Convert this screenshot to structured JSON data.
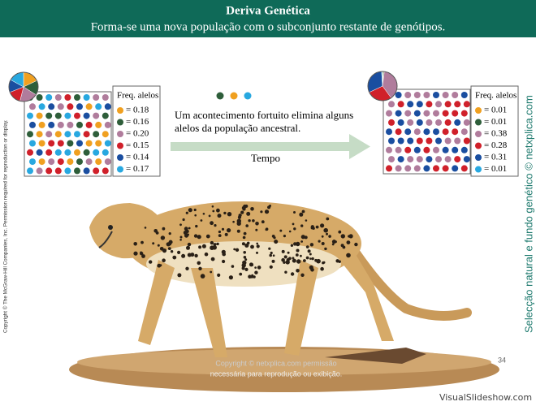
{
  "header": {
    "title": "Deriva Genética",
    "subtitle": "Forma-se uma nova população com o subconjunto restante de genótipos."
  },
  "side_left": "Copyright © The McGraw-Hill Companies, Inc. Permission required for reproduction or display.",
  "side_right": "Selecção natural e fundo genético © netxplica.com",
  "populations": [
    {
      "legend_title": "Freq. alelos",
      "alleles": [
        {
          "color": "#f0a020",
          "value": 0.18,
          "label": "= 0.18"
        },
        {
          "color": "#2e5e3a",
          "value": 0.16,
          "label": "= 0.16"
        },
        {
          "color": "#b07c9c",
          "value": 0.2,
          "label": "= 0.20"
        },
        {
          "color": "#d0202a",
          "value": 0.15,
          "label": "= 0.15"
        },
        {
          "color": "#1a4ea0",
          "value": 0.14,
          "label": "= 0.14"
        },
        {
          "color": "#28a8e0",
          "value": 0.17,
          "label": "= 0.17"
        }
      ]
    },
    {
      "legend_title": "Freq. alelos",
      "alleles": [
        {
          "color": "#f0a020",
          "value": 0.01,
          "label": "= 0.01"
        },
        {
          "color": "#2e5e3a",
          "value": 0.01,
          "label": "= 0.01"
        },
        {
          "color": "#b07c9c",
          "value": 0.38,
          "label": "= 0.38"
        },
        {
          "color": "#d0202a",
          "value": 0.28,
          "label": "= 0.28"
        },
        {
          "color": "#1a4ea0",
          "value": 0.31,
          "label": "= 0.31"
        },
        {
          "color": "#28a8e0",
          "value": 0.01,
          "label": "= 0.01"
        }
      ]
    }
  ],
  "caption": [
    "Um acontecimento fortuito elimina alguns",
    "alelos da população ancestral."
  ],
  "arrow_label": "Tempo",
  "page_number": "34",
  "watermark": [
    "Copyright © netxplica.com permissão",
    "necessária para reprodução ou exibição."
  ],
  "site": "VisualSlideshow.com"
}
